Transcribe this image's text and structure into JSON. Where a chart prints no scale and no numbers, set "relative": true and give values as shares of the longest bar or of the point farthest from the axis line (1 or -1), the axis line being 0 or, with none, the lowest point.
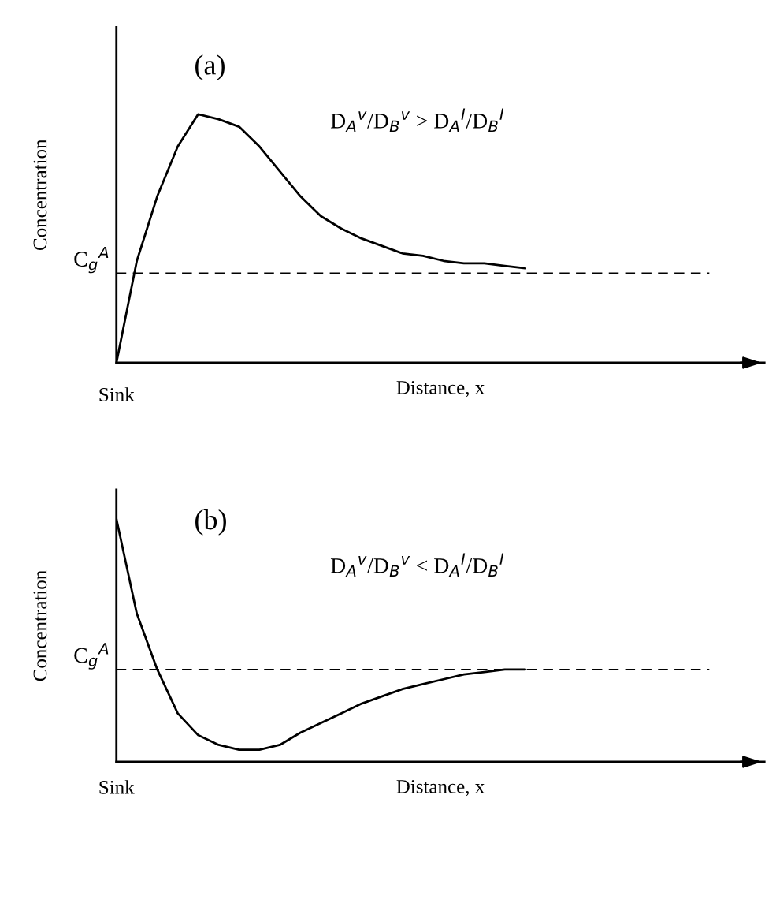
{
  "chart_data": [
    {
      "type": "line",
      "relative": true,
      "xlabel": "Distance, x",
      "ylabel": "Concentration",
      "marker": "none",
      "line_style": "solid",
      "categories": [
        null,
        null,
        null,
        null,
        null,
        null,
        null,
        null,
        null,
        null,
        null,
        null,
        null,
        null,
        null,
        null,
        null,
        null,
        null,
        null,
        null,
        null,
        null,
        null,
        null,
        null,
        null,
        null,
        null,
        null,
        null,
        null
      ],
      "series": [
        {
          "color": "#000000",
          "values": [
            0,
            0.41,
            0.67,
            0.87,
            1.0,
            0.98,
            0.95,
            0.87,
            0.77,
            0.67,
            0.59,
            0.54,
            0.5,
            0.47,
            0.44,
            0.43,
            0.41,
            0.4,
            0.4,
            0.39,
            0.38,
            null,
            null,
            null,
            null,
            null,
            null,
            null,
            null,
            null,
            null,
            null
          ]
        }
      ],
      "ref_lines": [
        {
          "axis": "y",
          "value": 0.36,
          "label": "C$_{g}$$^{A}$",
          "color": "#000000",
          "line_style": "dashed"
        }
      ],
      "annotations": [
        "(a)",
        "D$_{A}$$^{v}$/D$_{B}$$^{v}$ > D$_{A}$$^{I}$/D$_{B}$$^{I}$",
        "Sink"
      ]
    },
    {
      "type": "line",
      "relative": true,
      "xlabel": "Distance, x",
      "ylabel": "Concentration",
      "marker": "none",
      "line_style": "solid",
      "categories": [
        null,
        null,
        null,
        null,
        null,
        null,
        null,
        null,
        null,
        null,
        null,
        null,
        null,
        null,
        null,
        null,
        null,
        null,
        null,
        null,
        null,
        null,
        null,
        null,
        null,
        null,
        null,
        null,
        null,
        null,
        null,
        null
      ],
      "series": [
        {
          "color": "#000000",
          "values": [
            1.0,
            0.61,
            0.38,
            0.2,
            0.11,
            0.07,
            0.05,
            0.05,
            0.07,
            0.12,
            0.16,
            0.2,
            0.24,
            0.27,
            0.3,
            0.32,
            0.34,
            0.36,
            0.37,
            0.38,
            0.38,
            null,
            null,
            null,
            null,
            null,
            null,
            null,
            null,
            null,
            null,
            null
          ]
        }
      ],
      "ref_lines": [
        {
          "axis": "y",
          "value": 0.38,
          "label": "C$_{g}$$^{A}$",
          "color": "#000000",
          "line_style": "dashed"
        }
      ],
      "annotations": [
        "(b)",
        "D$_{A}$$^{v}$/D$_{B}$$^{v}$ < D$_{A}$$^{I}$/D$_{B}$$^{I}$",
        "Sink"
      ]
    }
  ]
}
